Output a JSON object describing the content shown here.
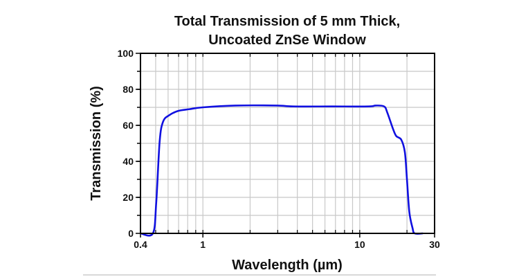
{
  "chart_data": {
    "type": "line",
    "title": [
      "Total Transmission of 5 mm Thick,",
      "Uncoated ZnSe Window"
    ],
    "xlabel": "Wavelength (µm)",
    "ylabel": "Transmission (%)",
    "xscale": "log",
    "xlim": [
      0.4,
      30
    ],
    "ylim": [
      0,
      100
    ],
    "xticks": [
      0.4,
      1,
      10,
      30
    ],
    "xtick_labels": [
      "0.4",
      "1",
      "10",
      "30"
    ],
    "yticks": [
      0,
      20,
      40,
      60,
      80,
      100
    ],
    "ytick_labels": [
      "0",
      "20",
      "40",
      "60",
      "80",
      "100"
    ],
    "x_grid": [
      0.5,
      0.6,
      0.7,
      0.8,
      0.9,
      1,
      2,
      3,
      4,
      5,
      6,
      7,
      8,
      9,
      10,
      20
    ],
    "y_grid": [
      10,
      20,
      30,
      40,
      50,
      60,
      70,
      80,
      90
    ],
    "grid": true,
    "line_color": "#1010e0",
    "series": [
      {
        "name": "Transmission",
        "x": [
          0.4,
          0.48,
          0.504,
          0.53,
          0.557,
          0.607,
          0.694,
          0.822,
          1.0,
          1.61,
          2.96,
          3.76,
          6.66,
          11.4,
          12.6,
          14.3,
          15.0,
          16.3,
          17.1,
          18.4,
          19.4,
          20.0,
          20.7,
          21.7,
          22.4,
          25.3
        ],
        "y": [
          0,
          0,
          17,
          51,
          62,
          65.5,
          68,
          69,
          70,
          71,
          71,
          70.5,
          70.5,
          70.5,
          71,
          70.5,
          67,
          58,
          54,
          52,
          45,
          30,
          12,
          3,
          0,
          0
        ]
      }
    ]
  }
}
